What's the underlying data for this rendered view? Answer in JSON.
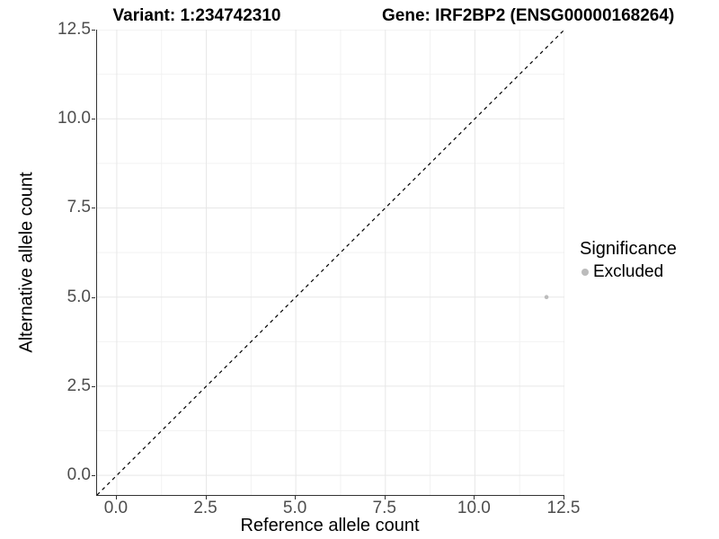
{
  "chart_data": {
    "type": "scatter",
    "title_left": "Variant: 1:234742310",
    "title_right": "Gene: IRF2BP2 (ENSG00000168264)",
    "xlabel": "Reference allele count",
    "ylabel": "Alternative allele count",
    "xlim": [
      -0.55,
      12.5
    ],
    "ylim": [
      -0.55,
      12.5
    ],
    "x_ticks": [
      0.0,
      2.5,
      5.0,
      7.5,
      10.0,
      12.5
    ],
    "y_ticks": [
      0.0,
      2.5,
      5.0,
      7.5,
      10.0,
      12.5
    ],
    "x_minor_ticks": [
      1.25,
      3.75,
      6.25,
      8.75,
      11.25
    ],
    "y_minor_ticks": [
      1.25,
      3.75,
      6.25,
      8.75,
      11.25
    ],
    "grid": true,
    "reference_line": {
      "type": "identity",
      "line_style": "dashed",
      "color": "#000000"
    },
    "series": [
      {
        "name": "Excluded",
        "color": "#bcbcbc",
        "point_radius": 2.3,
        "points": [
          {
            "x": 12,
            "y": 5
          }
        ]
      }
    ],
    "legend": {
      "title": "Significance",
      "position": "right",
      "entries": [
        {
          "label": "Excluded",
          "color": "#bcbcbc"
        }
      ]
    },
    "colors": {
      "grid_major": "#e7e7e7",
      "grid_minor": "#f2f2f2",
      "axis_line": "#333333",
      "tick_text": "#4d4d4d"
    }
  }
}
